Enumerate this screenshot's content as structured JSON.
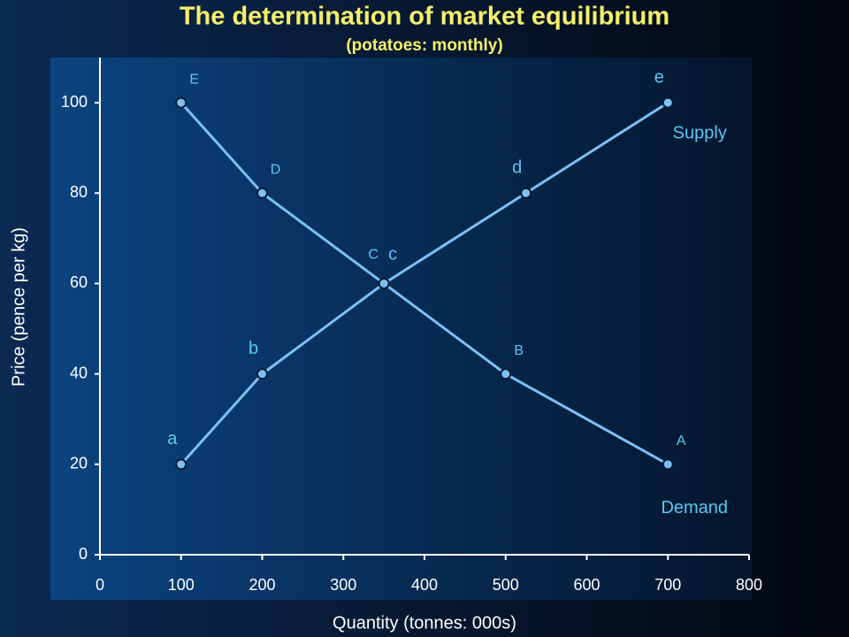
{
  "chart_data": {
    "type": "line",
    "title": "The determination of market equilibrium",
    "subtitle": "(potatoes: monthly)",
    "x_label": "Quantity (tonnes: 000s)",
    "y_label": "Price (pence per kg)",
    "xlim": [
      0,
      800
    ],
    "xticks": [
      0,
      100,
      200,
      300,
      400,
      500,
      600,
      700,
      800
    ],
    "ylim": [
      0,
      110
    ],
    "yticks": [
      0,
      20,
      40,
      60,
      80,
      100
    ],
    "series": [
      {
        "name": "Demand",
        "color": "#7cc0f5",
        "x": [
          100,
          200,
          350,
          500,
          700
        ],
        "values": [
          100,
          80,
          60,
          40,
          20
        ],
        "point_labels": [
          "E",
          "D",
          "C",
          "B",
          "A"
        ]
      },
      {
        "name": "Supply",
        "color": "#7cc0f5",
        "x": [
          100,
          200,
          350,
          525,
          700
        ],
        "values": [
          20,
          40,
          60,
          80,
          100
        ],
        "point_labels": [
          "a",
          "b",
          "c",
          "d",
          "e"
        ]
      }
    ]
  }
}
